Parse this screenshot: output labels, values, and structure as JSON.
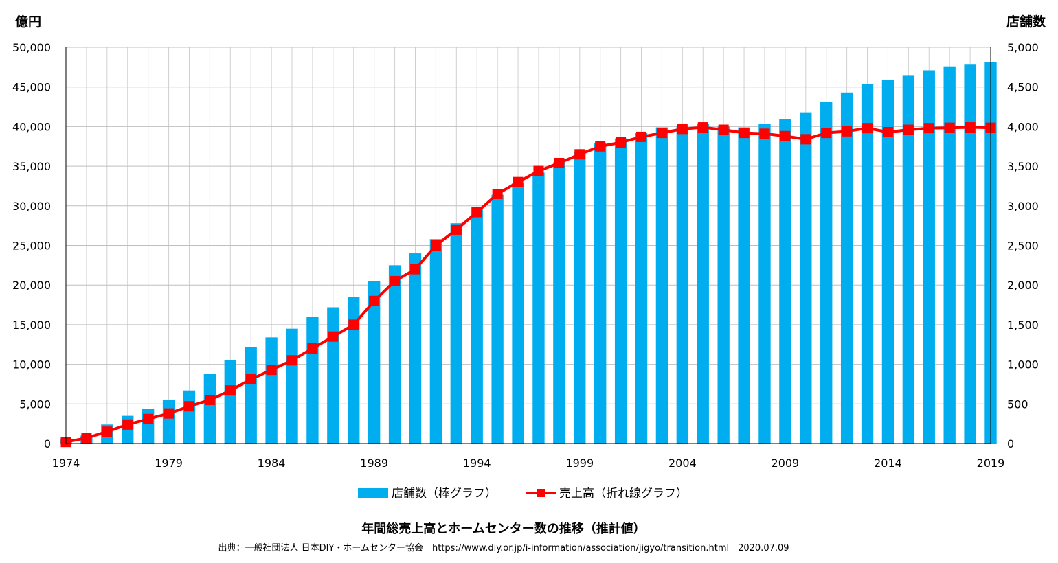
{
  "chart_data": {
    "type": "bar",
    "title": "年間総売上高とホームセンター数の推移（推計値）",
    "source": "出典：一般社団法人 日本DIY・ホームセンター協会　https://www.diy.or.jp/i-information/association/jigyo/transition.html　2020.07.09",
    "left_axis_unit": "億円",
    "right_axis_unit": "店舗数",
    "ylim_left": [
      0,
      50000
    ],
    "ylim_right": [
      0,
      5000
    ],
    "y_ticks_left": [
      "0",
      "5,000",
      "10,000",
      "15,000",
      "20,000",
      "25,000",
      "30,000",
      "35,000",
      "40,000",
      "45,000",
      "50,000"
    ],
    "y_ticks_right": [
      "0",
      "500",
      "1,000",
      "1,500",
      "2,000",
      "2,500",
      "3,000",
      "3,500",
      "4,000",
      "4,500",
      "5,000"
    ],
    "x": [
      1974,
      1975,
      1976,
      1977,
      1978,
      1979,
      1980,
      1981,
      1982,
      1983,
      1984,
      1985,
      1986,
      1987,
      1988,
      1989,
      1990,
      1991,
      1992,
      1993,
      1994,
      1995,
      1996,
      1997,
      1998,
      1999,
      2000,
      2001,
      2002,
      2003,
      2004,
      2005,
      2006,
      2007,
      2008,
      2009,
      2010,
      2011,
      2012,
      2013,
      2014,
      2015,
      2016,
      2017,
      2018,
      2019
    ],
    "x_tick_labels": [
      "1974",
      "1979",
      "1984",
      "1989",
      "1994",
      "1999",
      "2004",
      "2009",
      "2014",
      "2019"
    ],
    "grid": true,
    "legend_position": "bottom",
    "series": [
      {
        "name": "店舗数（棒グラフ）",
        "type": "bar",
        "axis": "right",
        "color": "#00AEEF",
        "values": [
          50,
          100,
          240,
          350,
          440,
          550,
          670,
          880,
          1050,
          1220,
          1340,
          1450,
          1600,
          1720,
          1850,
          2050,
          2250,
          2400,
          2580,
          2780,
          2980,
          3140,
          3290,
          3420,
          3550,
          3680,
          3790,
          3850,
          3920,
          3990,
          4010,
          4030,
          4000,
          3990,
          4030,
          4090,
          4180,
          4310,
          4430,
          4540,
          4590,
          4650,
          4710,
          4760,
          4790,
          4810
        ]
      },
      {
        "name": "売上高（折れ線グラフ）",
        "type": "line",
        "axis": "left",
        "color": "#FF0000",
        "values": [
          200,
          700,
          1500,
          2400,
          3100,
          3800,
          4700,
          5500,
          6700,
          8100,
          9300,
          10500,
          12000,
          13500,
          15000,
          18000,
          20500,
          22000,
          25000,
          27000,
          29200,
          31500,
          33000,
          34400,
          35400,
          36500,
          37500,
          38000,
          38700,
          39200,
          39700,
          39900,
          39600,
          39200,
          39100,
          38800,
          38400,
          39200,
          39400,
          39800,
          39300,
          39600,
          39800,
          39850,
          39900,
          39850
        ]
      }
    ]
  }
}
